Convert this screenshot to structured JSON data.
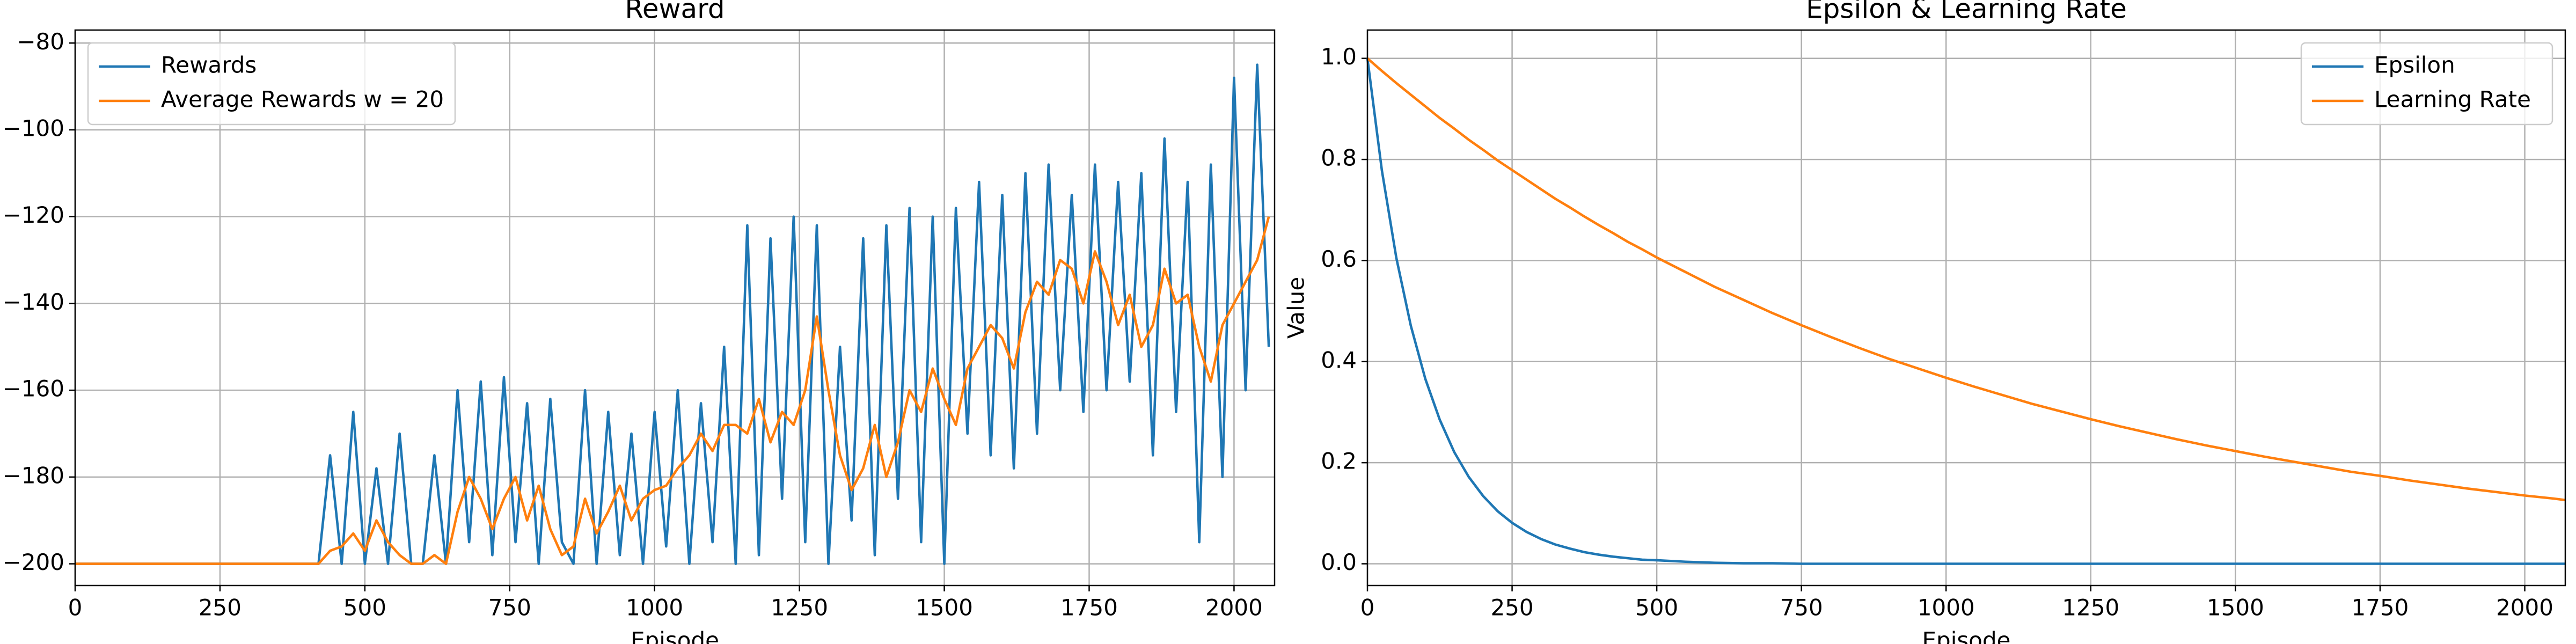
{
  "chart_data": [
    {
      "type": "line",
      "title": "Reward",
      "xlabel": "Episode",
      "grid": true,
      "legend": "upper left",
      "xlim": [
        0,
        2070
      ],
      "ylim": [
        -205,
        -77
      ],
      "xticks": [
        0,
        250,
        500,
        750,
        1000,
        1250,
        1500,
        1750,
        2000
      ],
      "yticks": [
        {
          "value": -200,
          "label": "−200"
        },
        {
          "value": -180,
          "label": "−180"
        },
        {
          "value": -160,
          "label": "−160"
        },
        {
          "value": -140,
          "label": "−140"
        },
        {
          "value": -120,
          "label": "−120"
        },
        {
          "value": -100,
          "label": "−100"
        },
        {
          "value": -80,
          "label": "−80"
        }
      ],
      "x": [
        0,
        20,
        40,
        60,
        80,
        100,
        120,
        140,
        160,
        180,
        200,
        220,
        240,
        260,
        280,
        300,
        320,
        340,
        360,
        380,
        400,
        420,
        440,
        460,
        480,
        500,
        520,
        540,
        560,
        580,
        600,
        620,
        640,
        660,
        680,
        700,
        720,
        740,
        760,
        780,
        800,
        820,
        840,
        860,
        880,
        900,
        920,
        940,
        960,
        980,
        1000,
        1020,
        1040,
        1060,
        1080,
        1100,
        1120,
        1140,
        1160,
        1180,
        1200,
        1220,
        1240,
        1260,
        1280,
        1300,
        1320,
        1340,
        1360,
        1380,
        1400,
        1420,
        1440,
        1460,
        1480,
        1500,
        1520,
        1540,
        1560,
        1580,
        1600,
        1620,
        1640,
        1660,
        1680,
        1700,
        1720,
        1740,
        1760,
        1780,
        1800,
        1820,
        1840,
        1860,
        1880,
        1900,
        1920,
        1940,
        1960,
        1980,
        2000,
        2020,
        2040,
        2060
      ],
      "series": [
        {
          "name": "Rewards",
          "color": "#1f77b4",
          "values": [
            -200,
            -200,
            -200,
            -200,
            -200,
            -200,
            -200,
            -200,
            -200,
            -200,
            -200,
            -200,
            -200,
            -200,
            -200,
            -200,
            -200,
            -200,
            -200,
            -200,
            -200,
            -200,
            -175,
            -200,
            -165,
            -200,
            -178,
            -200,
            -170,
            -200,
            -200,
            -175,
            -200,
            -160,
            -195,
            -158,
            -198,
            -157,
            -195,
            -163,
            -200,
            -162,
            -195,
            -200,
            -160,
            -200,
            -165,
            -198,
            -170,
            -200,
            -165,
            -196,
            -160,
            -200,
            -163,
            -195,
            -150,
            -200,
            -122,
            -198,
            -125,
            -185,
            -120,
            -195,
            -122,
            -200,
            -150,
            -190,
            -125,
            -198,
            -122,
            -185,
            -118,
            -195,
            -120,
            -200,
            -118,
            -170,
            -112,
            -175,
            -115,
            -178,
            -110,
            -170,
            -108,
            -160,
            -115,
            -165,
            -108,
            -160,
            -112,
            -158,
            -110,
            -175,
            -102,
            -165,
            -112,
            -195,
            -108,
            -180,
            -88,
            -160,
            -85,
            -150
          ]
        },
        {
          "name": "Average Rewards w = 20",
          "color": "#ff7f0e",
          "values": [
            -200,
            -200,
            -200,
            -200,
            -200,
            -200,
            -200,
            -200,
            -200,
            -200,
            -200,
            -200,
            -200,
            -200,
            -200,
            -200,
            -200,
            -200,
            -200,
            -200,
            -200,
            -200,
            -197,
            -196,
            -193,
            -197,
            -190,
            -195,
            -198,
            -200,
            -200,
            -198,
            -200,
            -188,
            -180,
            -185,
            -192,
            -185,
            -180,
            -190,
            -182,
            -192,
            -198,
            -196,
            -185,
            -193,
            -188,
            -182,
            -190,
            -185,
            -183,
            -182,
            -178,
            -175,
            -170,
            -174,
            -168,
            -168,
            -170,
            -162,
            -172,
            -165,
            -168,
            -160,
            -143,
            -160,
            -175,
            -183,
            -178,
            -168,
            -180,
            -172,
            -160,
            -165,
            -155,
            -162,
            -168,
            -155,
            -150,
            -145,
            -148,
            -155,
            -142,
            -135,
            -138,
            -130,
            -132,
            -140,
            -128,
            -135,
            -145,
            -138,
            -150,
            -145,
            -132,
            -140,
            -138,
            -150,
            -158,
            -145,
            -140,
            -135,
            -130,
            -120
          ]
        }
      ]
    },
    {
      "type": "line",
      "title": "Epsilon & Learning Rate",
      "xlabel": "Episode",
      "ylabel": "Value",
      "grid": true,
      "legend": "upper right",
      "xlim": [
        0,
        2070
      ],
      "ylim": [
        -0.043,
        1.056
      ],
      "xticks": [
        0,
        250,
        500,
        750,
        1000,
        1250,
        1500,
        1750,
        2000
      ],
      "yticks": [
        {
          "value": 0,
          "label": "0.0"
        },
        0.2,
        0.4,
        0.6,
        0.8,
        {
          "value": 1,
          "label": "1.0"
        }
      ],
      "x": [
        0,
        25,
        50,
        75,
        100,
        125,
        150,
        175,
        200,
        225,
        250,
        275,
        300,
        325,
        350,
        375,
        400,
        425,
        450,
        475,
        500,
        550,
        600,
        650,
        700,
        750,
        800,
        850,
        900,
        950,
        1000,
        1050,
        1100,
        1150,
        1200,
        1250,
        1300,
        1350,
        1400,
        1450,
        1500,
        1550,
        1600,
        1650,
        1700,
        1750,
        1800,
        1850,
        1900,
        1950,
        2000,
        2050,
        2070
      ],
      "series": [
        {
          "name": "Epsilon",
          "color": "#1f77b4",
          "values": [
            1,
            0.778,
            0.605,
            0.471,
            0.366,
            0.285,
            0.221,
            0.172,
            0.134,
            0.104,
            0.081,
            0.063,
            0.049,
            0.038,
            0.03,
            0.023,
            0.018,
            0.014,
            0.011,
            0.008,
            0.007,
            0.004,
            0.002,
            0.001,
            0.001,
            0,
            0,
            0,
            0,
            0,
            0,
            0,
            0,
            0,
            0,
            0,
            0,
            0,
            0,
            0,
            0,
            0,
            0,
            0,
            0,
            0,
            0,
            0,
            0,
            0,
            0,
            0,
            0
          ]
        },
        {
          "name": "Learning Rate",
          "color": "#ff7f0e",
          "values": [
            1,
            0.975,
            0.951,
            0.928,
            0.905,
            0.882,
            0.861,
            0.839,
            0.819,
            0.798,
            0.779,
            0.76,
            0.741,
            0.722,
            0.705,
            0.687,
            0.67,
            0.654,
            0.637,
            0.622,
            0.606,
            0.577,
            0.548,
            0.522,
            0.496,
            0.472,
            0.449,
            0.427,
            0.406,
            0.387,
            0.368,
            0.35,
            0.333,
            0.316,
            0.301,
            0.286,
            0.272,
            0.259,
            0.246,
            0.234,
            0.223,
            0.212,
            0.202,
            0.192,
            0.182,
            0.174,
            0.165,
            0.157,
            0.149,
            0.142,
            0.135,
            0.129,
            0.126
          ]
        }
      ]
    }
  ]
}
